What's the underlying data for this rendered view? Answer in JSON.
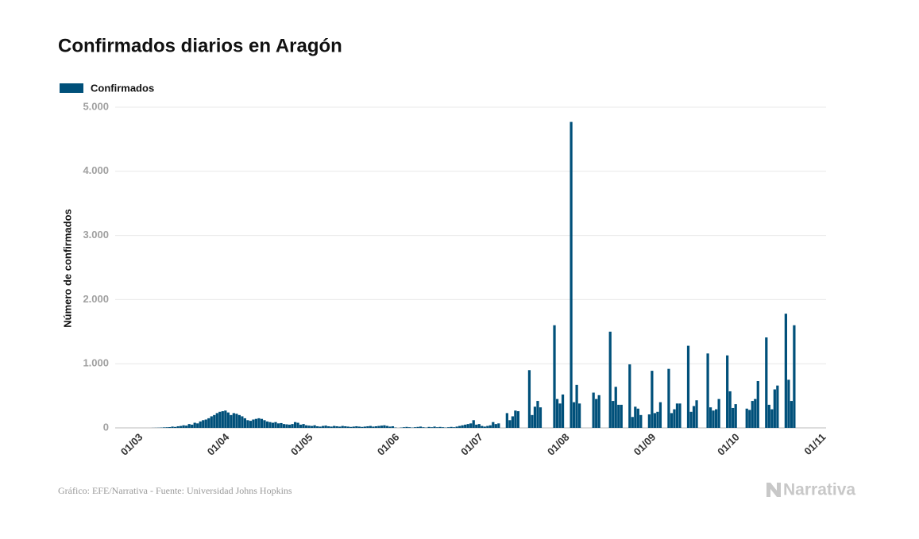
{
  "chart_data": {
    "type": "bar",
    "title": "Confirmados diarios en Aragón",
    "y_label": "Número de confirmados",
    "source": "Gráfico: EFE/Narrativa - Fuente: Universidad Johns Hopkins",
    "brand": "Narrativa",
    "grid": true,
    "legend": "top-left",
    "ylim": [
      0,
      5000
    ],
    "yticks": [
      0,
      {
        "value": 1000,
        "label": "1.000"
      },
      {
        "value": 2000,
        "label": "2.000"
      },
      {
        "value": 3000,
        "label": "3.000"
      },
      {
        "value": 4000,
        "label": "4.000"
      },
      {
        "value": 5000,
        "label": "5.000"
      }
    ],
    "categories": [
      "01/03",
      null,
      null,
      null,
      null,
      null,
      null,
      null,
      null,
      null,
      null,
      null,
      null,
      null,
      null,
      null,
      null,
      null,
      null,
      null,
      null,
      null,
      null,
      null,
      null,
      null,
      null,
      null,
      null,
      null,
      null,
      "01/04",
      null,
      null,
      null,
      null,
      null,
      null,
      null,
      null,
      null,
      null,
      null,
      null,
      null,
      null,
      null,
      null,
      null,
      null,
      null,
      null,
      null,
      null,
      null,
      null,
      null,
      null,
      null,
      null,
      null,
      "01/05",
      null,
      null,
      null,
      null,
      null,
      null,
      null,
      null,
      null,
      null,
      null,
      null,
      null,
      null,
      null,
      null,
      null,
      null,
      null,
      null,
      null,
      null,
      null,
      null,
      null,
      null,
      null,
      null,
      null,
      null,
      "01/06",
      null,
      null,
      null,
      null,
      null,
      null,
      null,
      null,
      null,
      null,
      null,
      null,
      null,
      null,
      null,
      null,
      null,
      null,
      null,
      null,
      null,
      null,
      null,
      null,
      null,
      null,
      null,
      null,
      null,
      "01/07",
      null,
      null,
      null,
      null,
      null,
      null,
      null,
      null,
      null,
      null,
      null,
      null,
      null,
      null,
      null,
      null,
      null,
      null,
      null,
      null,
      null,
      null,
      null,
      null,
      null,
      null,
      null,
      null,
      null,
      null,
      "01/08",
      null,
      null,
      null,
      null,
      null,
      null,
      null,
      null,
      null,
      null,
      null,
      null,
      null,
      null,
      null,
      null,
      null,
      null,
      null,
      null,
      null,
      null,
      null,
      null,
      null,
      null,
      null,
      null,
      null,
      null,
      "01/09",
      null,
      null,
      null,
      null,
      null,
      null,
      null,
      null,
      null,
      null,
      null,
      null,
      null,
      null,
      null,
      null,
      null,
      null,
      null,
      null,
      null,
      null,
      null,
      null,
      null,
      null,
      null,
      null,
      null,
      "01/10",
      null,
      null,
      null,
      null,
      null,
      null,
      null,
      null,
      null,
      null,
      null,
      null,
      null,
      null,
      null,
      null,
      null,
      null,
      null,
      null,
      null,
      null,
      null,
      null,
      null,
      null,
      null,
      null,
      null,
      null,
      "01/11"
    ],
    "series": [
      {
        "name": "Confirmados",
        "color": "#00507a",
        "values": [
          0,
          0,
          0,
          0,
          0,
          1,
          2,
          3,
          5,
          8,
          10,
          12,
          20,
          15,
          25,
          30,
          40,
          35,
          60,
          50,
          80,
          70,
          100,
          120,
          130,
          150,
          180,
          200,
          230,
          250,
          260,
          270,
          240,
          200,
          230,
          220,
          200,
          180,
          150,
          120,
          110,
          130,
          140,
          150,
          140,
          120,
          100,
          90,
          80,
          90,
          70,
          75,
          60,
          55,
          50,
          60,
          90,
          80,
          50,
          60,
          40,
          35,
          30,
          40,
          25,
          20,
          30,
          35,
          25,
          20,
          30,
          25,
          20,
          30,
          25,
          20,
          15,
          20,
          25,
          20,
          15,
          20,
          25,
          30,
          20,
          25,
          30,
          35,
          40,
          30,
          20,
          25,
          5,
          0,
          5,
          10,
          15,
          10,
          5,
          10,
          15,
          20,
          10,
          5,
          15,
          10,
          20,
          10,
          15,
          10,
          5,
          10,
          15,
          10,
          20,
          30,
          40,
          50,
          60,
          70,
          120,
          50,
          60,
          30,
          20,
          30,
          40,
          90,
          60,
          70,
          null,
          null,
          230,
          120,
          180,
          270,
          260,
          null,
          null,
          null,
          900,
          200,
          330,
          420,
          320,
          null,
          null,
          null,
          null,
          1600,
          450,
          380,
          520,
          null,
          null,
          4770,
          400,
          670,
          380,
          null,
          null,
          null,
          null,
          550,
          450,
          510,
          null,
          null,
          null,
          1500,
          420,
          640,
          360,
          360,
          null,
          null,
          990,
          170,
          330,
          300,
          200,
          null,
          null,
          210,
          890,
          230,
          250,
          400,
          null,
          null,
          920,
          230,
          290,
          380,
          380,
          null,
          null,
          1280,
          250,
          340,
          430,
          null,
          null,
          null,
          1160,
          320,
          270,
          290,
          450,
          null,
          null,
          1130,
          570,
          310,
          370,
          null,
          null,
          null,
          300,
          280,
          420,
          450,
          730,
          null,
          null,
          1410,
          360,
          290,
          600,
          660,
          null,
          null,
          1780,
          750,
          420,
          1600,
          null,
          null,
          null,
          null,
          null,
          null,
          null,
          null,
          null,
          null
        ]
      }
    ]
  }
}
